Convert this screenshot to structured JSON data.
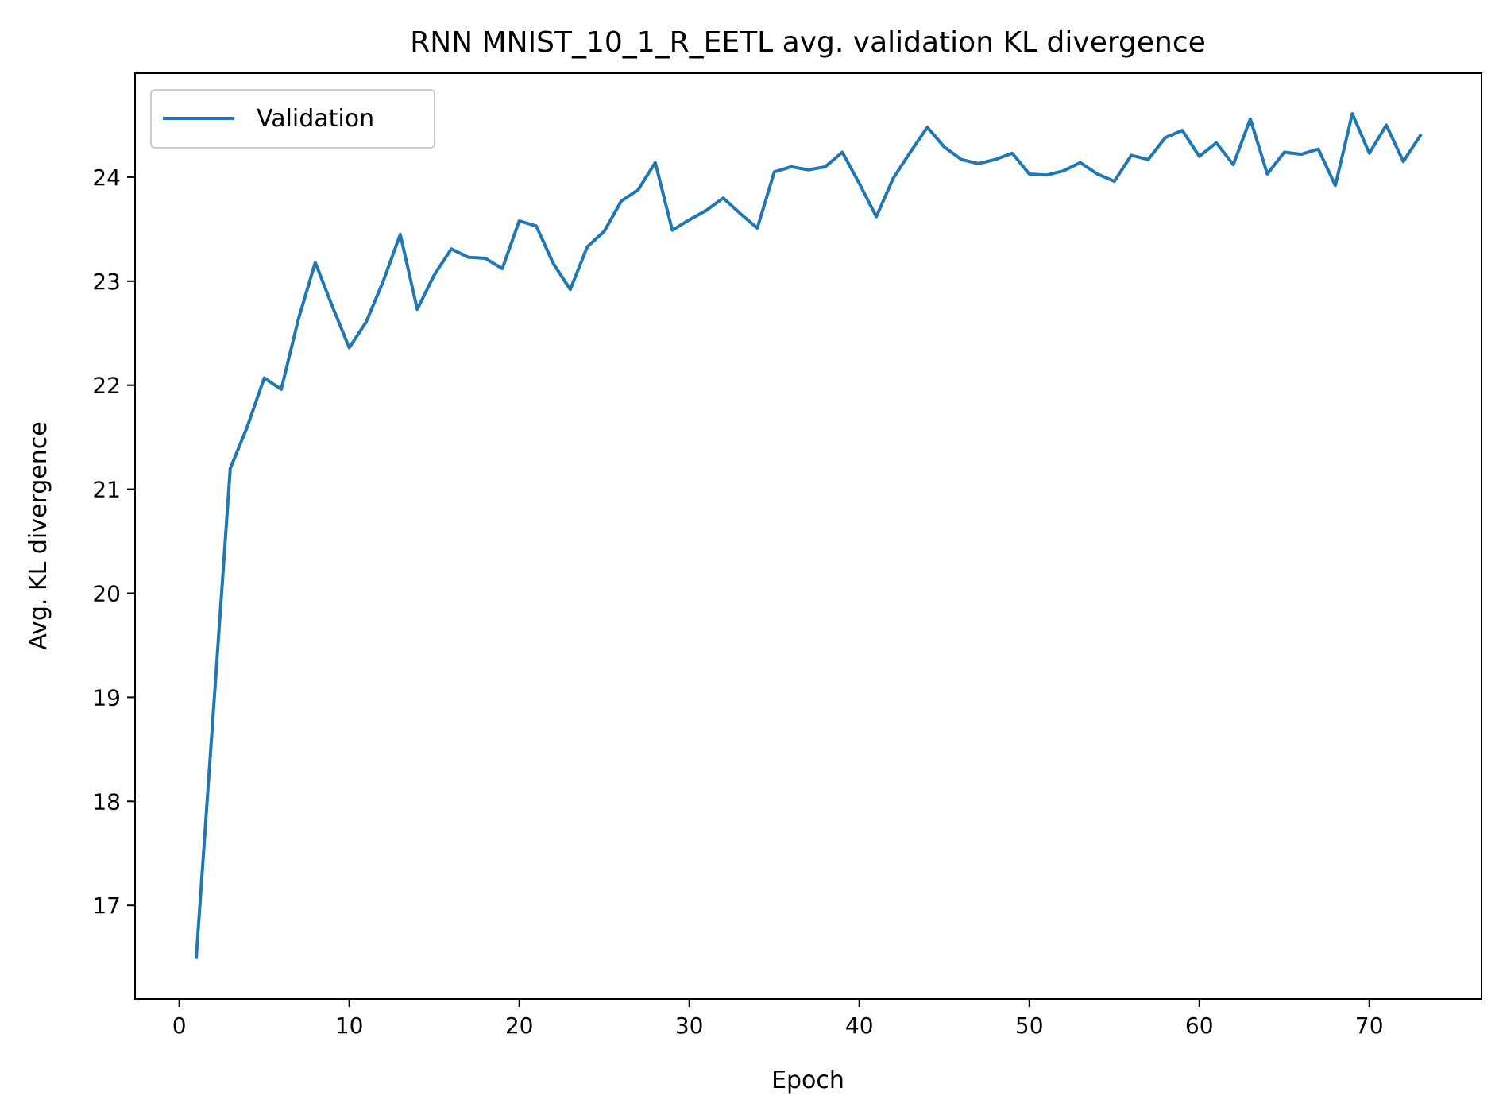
{
  "chart_data": {
    "type": "line",
    "title": "RNN MNIST_10_1_R_EETL avg. validation KL divergence",
    "xlabel": "Epoch",
    "ylabel": "Avg. KL divergence",
    "xlim": [
      -2.6,
      76.6
    ],
    "ylim": [
      16.1,
      25.0
    ],
    "xticks": [
      0,
      10,
      20,
      30,
      40,
      50,
      60,
      70
    ],
    "yticks": [
      17,
      18,
      19,
      20,
      21,
      22,
      23,
      24
    ],
    "grid": false,
    "legend": {
      "position": "top-left",
      "entries": [
        "Validation"
      ]
    },
    "series": [
      {
        "name": "Validation",
        "color": "#1f77b4",
        "x": [
          1,
          2,
          3,
          4,
          5,
          6,
          7,
          8,
          9,
          10,
          11,
          12,
          13,
          14,
          15,
          16,
          17,
          18,
          19,
          20,
          21,
          22,
          23,
          24,
          25,
          26,
          27,
          28,
          29,
          30,
          31,
          32,
          33,
          34,
          35,
          36,
          37,
          38,
          39,
          40,
          41,
          42,
          43,
          44,
          45,
          46,
          47,
          48,
          49,
          50,
          51,
          52,
          53,
          54,
          55,
          56,
          57,
          58,
          59,
          60,
          61,
          62,
          63,
          64,
          65,
          66,
          67,
          68,
          69,
          70,
          71,
          72,
          73
        ],
        "values": [
          16.5,
          18.85,
          21.2,
          21.6,
          22.07,
          21.96,
          22.63,
          23.18,
          22.76,
          22.36,
          22.61,
          23.0,
          23.45,
          22.73,
          23.06,
          23.31,
          23.23,
          23.22,
          23.12,
          23.58,
          23.53,
          23.17,
          22.92,
          23.33,
          23.48,
          23.77,
          23.88,
          24.14,
          23.49,
          23.59,
          23.68,
          23.8,
          23.65,
          23.51,
          24.05,
          24.1,
          24.07,
          24.1,
          24.24,
          23.94,
          23.62,
          23.99,
          24.24,
          24.48,
          24.29,
          24.17,
          24.13,
          24.17,
          24.23,
          24.03,
          24.02,
          24.06,
          24.14,
          24.03,
          23.96,
          24.21,
          24.17,
          24.38,
          24.45,
          24.2,
          24.33,
          24.12,
          24.56,
          24.03,
          24.24,
          24.22,
          24.27,
          23.92,
          24.61,
          24.23,
          24.5,
          24.15,
          24.4
        ]
      }
    ]
  }
}
